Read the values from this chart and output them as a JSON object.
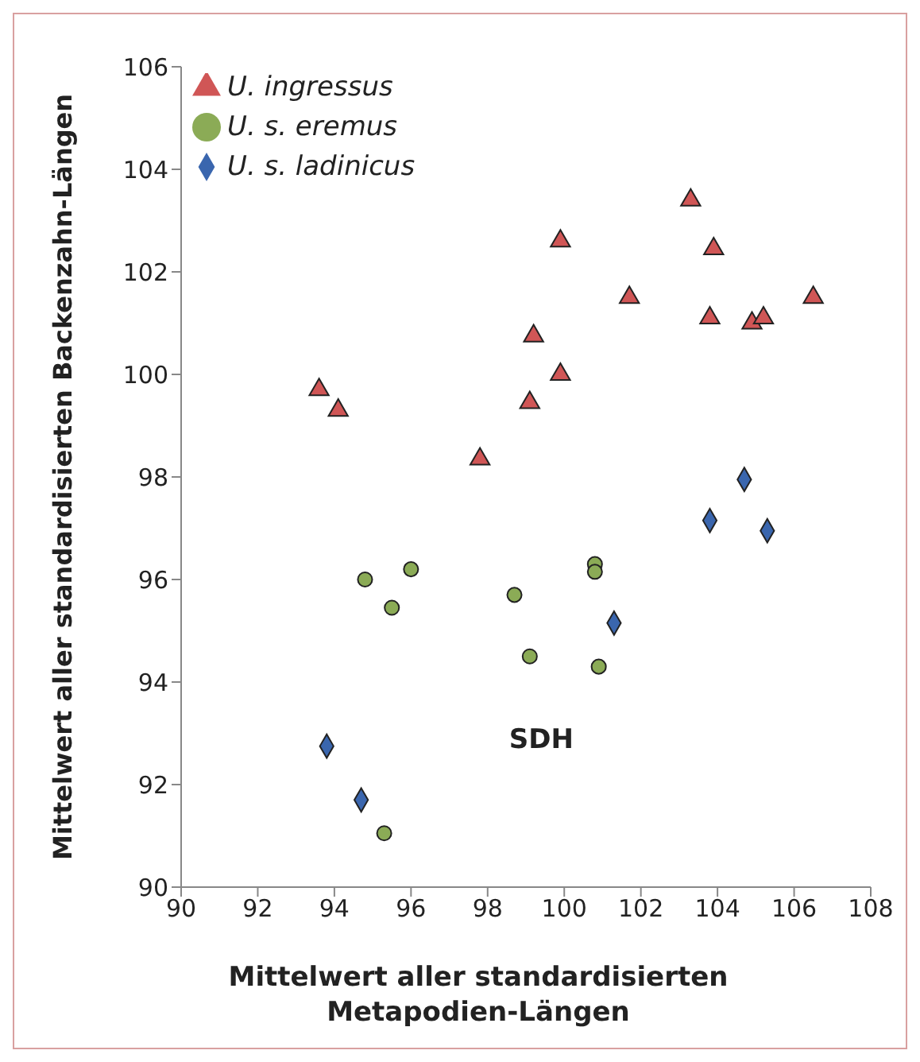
{
  "chart_data": {
    "type": "scatter",
    "xlabel": "Mittelwert aller standardisierten\nMetapodien-Längen",
    "ylabel": "Mittelwert aller standardisierten Backenzahn-Längen",
    "xlim": [
      90,
      108
    ],
    "xticks": [
      90,
      92,
      94,
      96,
      98,
      100,
      102,
      104,
      106,
      108
    ],
    "ylim": [
      90,
      106
    ],
    "yticks": [
      90,
      92,
      94,
      96,
      98,
      100,
      102,
      104,
      106
    ],
    "grid": false,
    "legend": "top left",
    "annotations": [
      "SDH"
    ],
    "series": [
      {
        "name": "U. s. eremus",
        "color": "#8bab56",
        "marker": "circle",
        "x": [
          94.8,
          95.5,
          96.0,
          98.7,
          99.1,
          100.8,
          100.8,
          100.9,
          95.3
        ],
        "values": [
          96.0,
          95.45,
          96.2,
          95.7,
          94.5,
          96.3,
          96.15,
          94.3,
          91.05
        ]
      },
      {
        "name": "U. s. ladinicus",
        "color": "#3a66ae",
        "marker": "diamond",
        "x": [
          93.8,
          94.7,
          101.3,
          103.8,
          104.7,
          105.3
        ],
        "values": [
          92.75,
          91.7,
          95.15,
          97.15,
          97.95,
          96.95
        ]
      },
      {
        "name": "U. ingressus",
        "color": "#d05656",
        "marker": "triangle",
        "x": [
          93.6,
          94.1,
          97.8,
          99.1,
          99.2,
          99.9,
          99.9,
          101.7,
          103.3,
          103.9,
          103.8,
          104.9,
          105.2,
          106.5
        ],
        "values": [
          99.7,
          99.3,
          98.35,
          99.45,
          100.75,
          100.0,
          102.6,
          101.5,
          103.4,
          102.45,
          101.1,
          101.0,
          101.1,
          101.5
        ]
      }
    ]
  }
}
